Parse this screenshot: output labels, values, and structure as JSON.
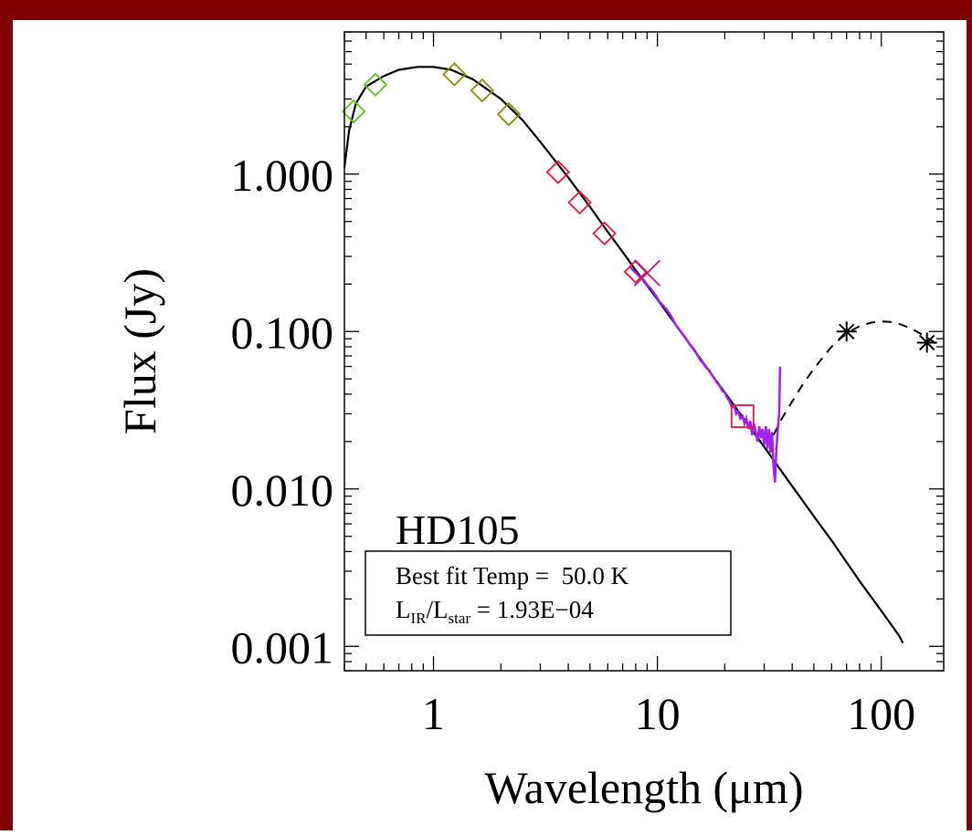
{
  "colors": {
    "frame": "#800000",
    "background": "#ffffff",
    "axis": "#000000",
    "model": "#000000",
    "spectrum": "#a020f0",
    "optical": "#5fc021",
    "nir": "#8b8b00",
    "irac": "#e6193c",
    "mips24": "#e6193c",
    "far_ir": "#000000",
    "cross": "#c71585"
  },
  "chart_data": {
    "type": "scatter",
    "xscale": "log",
    "yscale": "log",
    "xlim": [
      0.4,
      190
    ],
    "ylim": [
      0.0007,
      8
    ],
    "xlabel": "Wavelength (μm)",
    "ylabel": "Flux (Jy)",
    "x_ticks": [
      {
        "value": 1,
        "label": "1"
      },
      {
        "value": 10,
        "label": "10"
      },
      {
        "value": 100,
        "label": "100"
      }
    ],
    "y_ticks": [
      {
        "value": 0.001,
        "label": "0.001"
      },
      {
        "value": 0.01,
        "label": "0.010"
      },
      {
        "value": 0.1,
        "label": "0.100"
      },
      {
        "value": 1,
        "label": "1.000"
      }
    ],
    "annotation": {
      "star": "HD105",
      "fit_text": "Best fit Temp =  50.0 K",
      "lir_L": "L",
      "lir_sub1": "IR",
      "lir_slash": "/L",
      "lir_sub2": "star",
      "lir_value": " = 1.93E−04"
    },
    "series": [
      {
        "marker": "diamond",
        "color_key": "optical",
        "points": [
          [
            0.44,
            2.5
          ],
          [
            0.55,
            3.7
          ]
        ]
      },
      {
        "marker": "diamond",
        "color_key": "nir",
        "points": [
          [
            1.24,
            4.3
          ],
          [
            1.65,
            3.4
          ],
          [
            2.17,
            2.4
          ]
        ]
      },
      {
        "marker": "diamond",
        "color_key": "irac",
        "points": [
          [
            3.6,
            1.03
          ],
          [
            4.5,
            0.66
          ],
          [
            5.8,
            0.42
          ],
          [
            8.0,
            0.24
          ]
        ]
      },
      {
        "marker": "square",
        "color_key": "mips24",
        "points": [
          [
            24,
            0.029
          ]
        ]
      },
      {
        "marker": "asterisk",
        "color_key": "far_ir",
        "points": [
          [
            70,
            0.1
          ],
          [
            160,
            0.085
          ]
        ]
      },
      {
        "marker": "cross",
        "color_key": "cross",
        "points": [
          [
            9.0,
            0.235
          ]
        ]
      }
    ],
    "photosphere_model": [
      [
        0.4,
        1.1
      ],
      [
        0.42,
        1.9
      ],
      [
        0.45,
        2.8
      ],
      [
        0.5,
        3.6
      ],
      [
        0.6,
        4.2
      ],
      [
        0.7,
        4.6
      ],
      [
        0.85,
        4.8
      ],
      [
        1.0,
        4.8
      ],
      [
        1.2,
        4.6
      ],
      [
        1.5,
        4.0
      ],
      [
        2.0,
        3.0
      ],
      [
        2.5,
        2.2
      ],
      [
        3.0,
        1.6
      ],
      [
        4.0,
        0.95
      ],
      [
        5.0,
        0.62
      ],
      [
        6.0,
        0.43
      ],
      [
        7.0,
        0.32
      ],
      [
        8.0,
        0.245
      ],
      [
        10,
        0.16
      ],
      [
        12,
        0.112
      ],
      [
        15,
        0.072
      ],
      [
        20,
        0.041
      ],
      [
        25,
        0.0265
      ],
      [
        30,
        0.0185
      ],
      [
        40,
        0.0104
      ],
      [
        50,
        0.0067
      ],
      [
        60,
        0.0047
      ],
      [
        80,
        0.0026
      ],
      [
        100,
        0.00168
      ],
      [
        120,
        0.00117
      ],
      [
        125,
        0.00105
      ]
    ],
    "dust_model": [
      [
        33,
        0.022
      ],
      [
        36,
        0.028
      ],
      [
        40,
        0.036
      ],
      [
        45,
        0.047
      ],
      [
        50,
        0.058
      ],
      [
        55,
        0.069
      ],
      [
        60,
        0.08
      ],
      [
        65,
        0.089
      ],
      [
        70,
        0.097
      ],
      [
        75,
        0.103
      ],
      [
        80,
        0.108
      ],
      [
        90,
        0.114
      ],
      [
        100,
        0.116
      ],
      [
        110,
        0.115
      ],
      [
        120,
        0.112
      ],
      [
        135,
        0.105
      ],
      [
        150,
        0.097
      ],
      [
        165,
        0.089
      ],
      [
        180,
        0.082
      ]
    ],
    "irs_spectrum": [
      [
        7.5,
        0.26
      ],
      [
        7.8,
        0.245
      ],
      [
        8.1,
        0.232
      ],
      [
        8.4,
        0.22
      ],
      [
        8.7,
        0.212
      ],
      [
        9.0,
        0.198
      ],
      [
        9.4,
        0.185
      ],
      [
        9.8,
        0.17
      ],
      [
        10.2,
        0.155
      ],
      [
        10.6,
        0.146
      ],
      [
        11.0,
        0.138
      ],
      [
        11.5,
        0.126
      ],
      [
        12.0,
        0.112
      ],
      [
        12.5,
        0.103
      ],
      [
        13.0,
        0.096
      ],
      [
        13.5,
        0.089
      ],
      [
        14.0,
        0.082
      ],
      [
        14.5,
        0.078
      ],
      [
        15.0,
        0.072
      ],
      [
        15.5,
        0.066
      ],
      [
        16.0,
        0.063
      ],
      [
        16.5,
        0.059
      ],
      [
        17.0,
        0.057
      ],
      [
        17.5,
        0.053
      ],
      [
        18.0,
        0.05
      ],
      [
        18.5,
        0.047
      ],
      [
        19.0,
        0.045
      ],
      [
        19.5,
        0.042
      ],
      [
        20.0,
        0.041
      ],
      [
        20.5,
        0.038
      ],
      [
        21.0,
        0.036
      ],
      [
        21.5,
        0.033
      ],
      [
        22.0,
        0.034
      ],
      [
        22.5,
        0.03
      ],
      [
        23.0,
        0.031
      ],
      [
        23.5,
        0.028
      ],
      [
        24.0,
        0.029
      ],
      [
        24.5,
        0.026
      ],
      [
        25.0,
        0.028
      ],
      [
        25.5,
        0.024
      ],
      [
        26.0,
        0.027
      ],
      [
        26.5,
        0.022
      ],
      [
        27.0,
        0.026
      ],
      [
        27.5,
        0.023
      ],
      [
        28.0,
        0.02
      ],
      [
        28.5,
        0.025
      ],
      [
        29.0,
        0.021
      ],
      [
        29.5,
        0.024
      ],
      [
        30.0,
        0.019
      ],
      [
        30.5,
        0.025
      ],
      [
        31.0,
        0.018
      ],
      [
        31.5,
        0.024
      ],
      [
        32.0,
        0.017
      ],
      [
        32.5,
        0.023
      ],
      [
        33.0,
        0.014
      ],
      [
        33.5,
        0.011
      ],
      [
        34.0,
        0.018
      ],
      [
        34.5,
        0.024
      ],
      [
        35.0,
        0.03
      ],
      [
        35.3,
        0.06
      ]
    ]
  }
}
